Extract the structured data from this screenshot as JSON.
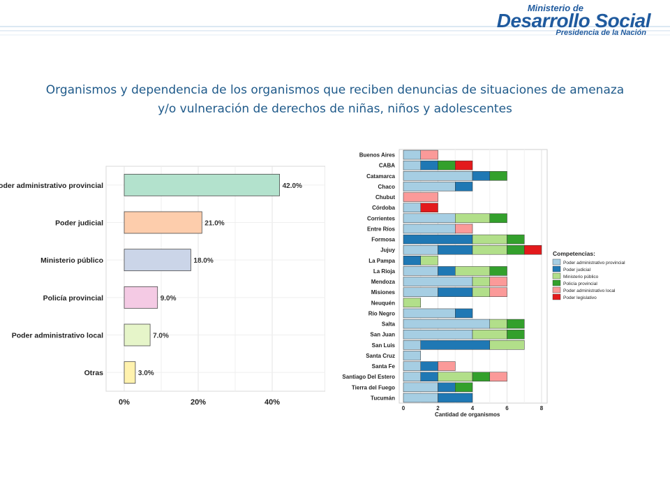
{
  "header": {
    "logo_line1": "Ministerio de",
    "logo_line2": "Desarrollo Social",
    "logo_line3": "Presidencia de la Nación"
  },
  "title": {
    "line1": "Organismos y dependencia  de los organismos que reciben denuncias de situaciones de amenaza",
    "line2": "y/o vulneración de derechos  de niñas, niños y adolescentes"
  },
  "chart_data": [
    {
      "type": "bar",
      "orientation": "horizontal",
      "title": "",
      "categories": [
        "Poder administrativo provincial",
        "Poder judicial",
        "Ministerio público",
        "Policía provincial",
        "Poder administrativo local",
        "Otras"
      ],
      "values": [
        42.0,
        21.0,
        18.0,
        9.0,
        7.0,
        3.0
      ],
      "data_labels": [
        "42.0%",
        "21.0%",
        "18.0%",
        "9.0%",
        "7.0%",
        "3.0%"
      ],
      "colors": [
        "#b3e2cd",
        "#fdcdac",
        "#cbd5e8",
        "#f4cae4",
        "#e6f5c9",
        "#fff2ae"
      ],
      "x_ticks": [
        "0%",
        "20%",
        "40%"
      ],
      "xlim": [
        0,
        45
      ],
      "grid": true
    },
    {
      "type": "bar",
      "orientation": "horizontal",
      "stacked": true,
      "title": "",
      "xlabel": "Cantidad de organismos",
      "xlim": [
        0,
        8.8
      ],
      "x_ticks": [
        0,
        2,
        4,
        6,
        8
      ],
      "categories": [
        "Buenos Aires",
        "CABA",
        "Catamarca",
        "Chaco",
        "Chubut",
        "Córdoba",
        "Corrientes",
        "Entre Ríos",
        "Formosa",
        "Jujuy",
        "La Pampa",
        "La Rioja",
        "Mendoza",
        "Misiones",
        "Neuquén",
        "Río Negro",
        "Salta",
        "San Juan",
        "San Luis",
        "Santa Cruz",
        "Santa Fe",
        "Santiago Del Estero",
        "Tierra del Fuego",
        "Tucumán"
      ],
      "legend": {
        "title": "Competencias:",
        "position": "right"
      },
      "series": [
        {
          "name": "Poder administrativo provincial",
          "color": "#a6cee3",
          "values": [
            1,
            1,
            4,
            3,
            0,
            1,
            3,
            3,
            0,
            2,
            0,
            2,
            4,
            2,
            0,
            3,
            5,
            4,
            1,
            1,
            1,
            1,
            2,
            2
          ]
        },
        {
          "name": "Poder judicial",
          "color": "#1f78b4",
          "values": [
            0,
            1,
            1,
            1,
            0,
            0,
            0,
            0,
            4,
            2,
            1,
            1,
            0,
            2,
            0,
            1,
            0,
            0,
            4,
            0,
            1,
            1,
            1,
            2
          ]
        },
        {
          "name": "Ministerio público",
          "color": "#b2df8a",
          "values": [
            0,
            0,
            0,
            0,
            0,
            0,
            2,
            0,
            2,
            2,
            1,
            2,
            1,
            1,
            1,
            0,
            1,
            2,
            2,
            0,
            0,
            2,
            0,
            0
          ]
        },
        {
          "name": "Policía provincial",
          "color": "#33a02c",
          "values": [
            0,
            1,
            1,
            0,
            0,
            0,
            1,
            0,
            1,
            1,
            0,
            1,
            0,
            0,
            0,
            0,
            1,
            1,
            0,
            0,
            0,
            1,
            1,
            0
          ]
        },
        {
          "name": "Poder administrativo local",
          "color": "#fb9a99",
          "values": [
            1,
            0,
            0,
            0,
            2,
            0,
            0,
            1,
            0,
            0,
            0,
            0,
            1,
            1,
            0,
            0,
            0,
            0,
            0,
            0,
            1,
            1,
            0,
            0
          ]
        },
        {
          "name": "Poder legislativo",
          "color": "#e31a1c",
          "values": [
            0,
            1,
            0,
            0,
            0,
            1,
            0,
            0,
            0,
            1,
            0,
            0,
            0,
            0,
            0,
            0,
            0,
            0,
            0,
            0,
            0,
            0,
            0,
            0
          ]
        }
      ],
      "grid": true
    }
  ]
}
